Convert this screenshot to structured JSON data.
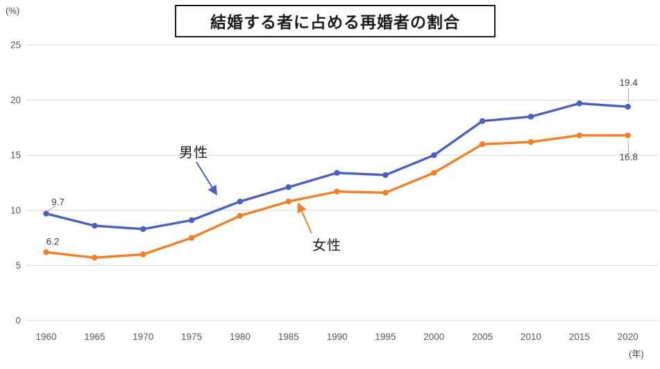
{
  "title": "結婚する者に占める再婚者の割合",
  "y_axis": {
    "unit": "(%)",
    "ticks": [
      0,
      5,
      10,
      15,
      20,
      25
    ]
  },
  "x_axis": {
    "unit": "(年)"
  },
  "chart_data": {
    "type": "line",
    "title": "結婚する者に占める再婚者の割合",
    "categories": [
      "1960",
      "1965",
      "1970",
      "1975",
      "1980",
      "1985",
      "1990",
      "1995",
      "2000",
      "2005",
      "2010",
      "2015",
      "2020"
    ],
    "series": [
      {
        "key": "male",
        "name": "男性",
        "color": "#4a5ec7",
        "values": [
          9.7,
          8.6,
          8.3,
          9.1,
          10.8,
          12.1,
          13.4,
          13.2,
          15.0,
          18.1,
          18.5,
          19.7,
          19.4
        ]
      },
      {
        "key": "female",
        "name": "女性",
        "color": "#f57e20",
        "values": [
          6.2,
          5.7,
          6.0,
          7.5,
          9.5,
          10.8,
          11.7,
          11.6,
          13.4,
          16.0,
          16.2,
          16.8,
          16.8
        ]
      }
    ],
    "ylabel": "(%)",
    "xlabel": "(年)",
    "ylim": [
      0,
      25
    ],
    "yticks": [
      0,
      5,
      10,
      15,
      20,
      25
    ],
    "grid": "horizontal",
    "legend": "inline-labels-with-arrows",
    "colors": {
      "grid": "#d6d6d6",
      "tick_label": "#595959",
      "value_label": "#3f3f3f"
    }
  },
  "annotations": {
    "point_labels": [
      {
        "series": "男性",
        "year": "1960",
        "text": "9.7",
        "placement": "above-right",
        "leader": true
      },
      {
        "series": "女性",
        "year": "1960",
        "text": "6.2",
        "placement": "above",
        "leader": false
      },
      {
        "series": "男性",
        "year": "2020",
        "text": "19.4",
        "placement": "above",
        "leader": true
      },
      {
        "series": "女性",
        "year": "2020",
        "text": "16.8",
        "placement": "below",
        "leader": true
      }
    ],
    "series_labels": [
      {
        "text": "男性",
        "series": "male"
      },
      {
        "text": "女性",
        "series": "female"
      }
    ]
  }
}
